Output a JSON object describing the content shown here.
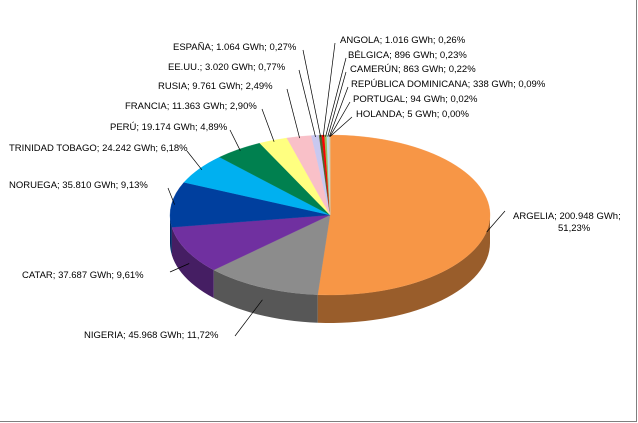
{
  "chart_data": {
    "type": "pie",
    "style": "3d",
    "title": "",
    "categories": [
      "ARGELIA",
      "NIGERIA",
      "CATAR",
      "NORUEGA",
      "TRINIDAD TOBAGO",
      "PERÚ",
      "FRANCIA",
      "RUSIA",
      "EE.UU.",
      "ESPAÑA",
      "ANGOLA",
      "BÉLGICA",
      "CAMERÚN",
      "REPÚBLICA DOMINICANA",
      "PORTUGAL",
      "HOLANDA"
    ],
    "values": [
      200948,
      45968,
      37687,
      35810,
      24242,
      19174,
      11363,
      9761,
      3020,
      1064,
      1016,
      896,
      863,
      338,
      94,
      5
    ],
    "percents": [
      51.23,
      11.72,
      9.61,
      9.13,
      6.18,
      4.89,
      2.9,
      2.49,
      0.77,
      0.27,
      0.26,
      0.23,
      0.22,
      0.09,
      0.02,
      0.0
    ],
    "unit": "GWh",
    "labels": [
      "ARGELIA; 200.948 GWh;",
      "NIGERIA;  45.968 GWh; 11,72%",
      "CATAR; 37.687 GWh; 9,61%",
      "NORUEGA; 35.810 GWh; 9,13%",
      "TRINIDAD TOBAGO; 24.242 GWh; 6,18%",
      "PERÚ; 19.174 GWh; 4,89%",
      "FRANCIA; 11.363 GWh; 2,90%",
      "RUSIA; 9.761 GWh; 2,49%",
      "EE.UU.; 3.020 GWh; 0,77%",
      "ESPAÑA; 1.064 GWh; 0,27%",
      "ANGOLA; 1.016 GWh; 0,26%",
      "BÉLGICA; 896 GWh; 0,23%",
      "CAMERÚN; 863 GWh; 0,22%",
      "REPÚBLICA DOMINICANA; 338 GWh; 0,09%",
      "PORTUGAL; 94 GWh; 0,02%",
      "HOLANDA; 5 GWh; 0,00%"
    ],
    "label_line2": [
      "51,23%",
      "",
      "",
      "",
      "",
      "",
      "",
      "",
      "",
      "",
      "",
      "",
      "",
      "",
      "",
      ""
    ],
    "colors": [
      "#f79646",
      "#8c8c8c",
      "#7030a0",
      "#003f9e",
      "#00b0f0",
      "#00804f",
      "#ffff80",
      "#f9c0c8",
      "#c8c8f0",
      "#4f6228",
      "#ff0000",
      "#9bbb59",
      "#b7dee8",
      "#e6b9b8",
      "#c0c0c0",
      "#d7e4bd"
    ],
    "legend": "none"
  }
}
